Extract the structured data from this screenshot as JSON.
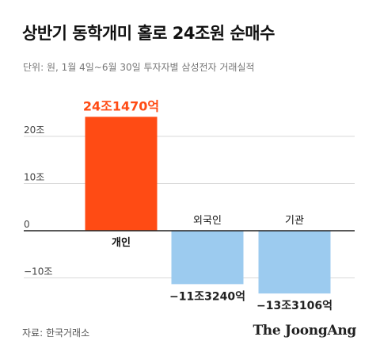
{
  "header": {
    "title": "상반기 동학개미 홀로 24조원 순매수",
    "subtitle": "단위: 원, 1월 4일~6월 30일 투자자별 삼성전자 거래실적"
  },
  "footer": {
    "source": "자료: 한국거래소",
    "logo": "The JoongAng"
  },
  "chart_data": {
    "type": "bar",
    "categories": [
      "개인",
      "외국인",
      "기관"
    ],
    "values": [
      24.147,
      -11.324,
      -13.3106
    ],
    "data_labels": [
      "24조1470억",
      "−11조3240억",
      "−13조3106억"
    ],
    "yticks": [
      -10,
      0,
      10,
      20
    ],
    "ytick_labels": [
      "−10조",
      "0",
      "10조",
      "20조"
    ],
    "ylim": [
      -15,
      25
    ],
    "grid": true,
    "colors": {
      "positive": "#ff4b14",
      "negative": "#9ccbef",
      "positive_label": "#ff4b14",
      "negative_label": "#222222",
      "grid": "#d9d9d9",
      "zero_line": "#222222"
    }
  }
}
